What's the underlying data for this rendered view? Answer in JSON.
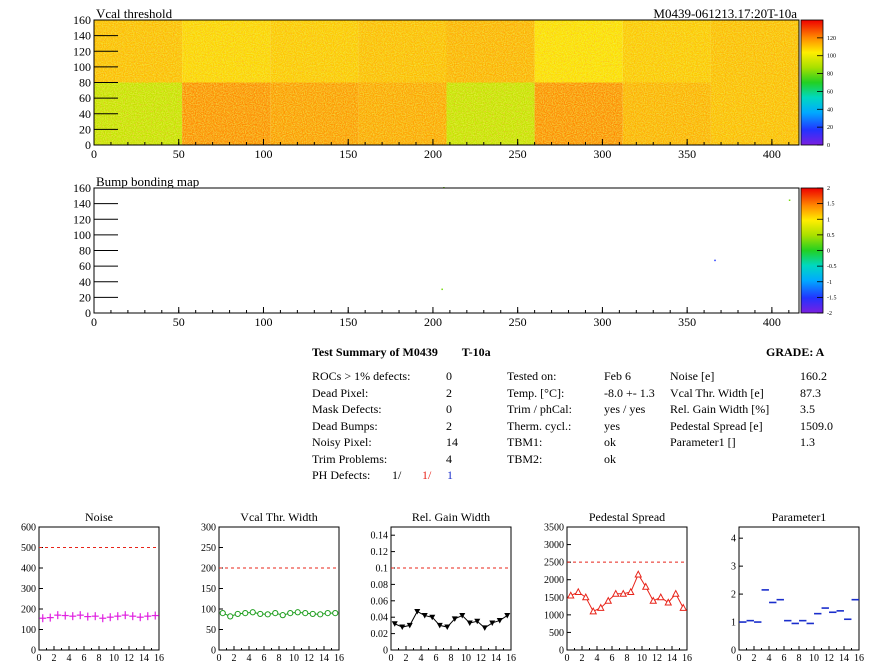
{
  "summary": {
    "title": "Test Summary of M0439",
    "temp_label": "T-10a",
    "grade": "GRADE:  A",
    "defects": [
      {
        "label": "ROCs > 1% defects:",
        "value": "0"
      },
      {
        "label": "Dead Pixel:",
        "value": "2"
      },
      {
        "label": "Mask Defects:",
        "value": "0"
      },
      {
        "label": "Dead Bumps:",
        "value": "2"
      },
      {
        "label": "Noisy Pixel:",
        "value": "14"
      },
      {
        "label": "Trim Problems:",
        "value": "4"
      }
    ],
    "ph_defects": {
      "label": "PH Defects:",
      "v1": "1/",
      "v2": "1/",
      "v3": "1",
      "color1": "#000000",
      "color2": "#e8241a",
      "color3": "#1a2ecc"
    },
    "tests": [
      {
        "label": "Tested on:",
        "value": "Feb 6"
      },
      {
        "label": "Temp. [°C]:",
        "value": "-8.0 +- 1.3"
      },
      {
        "label": "Trim / phCal:",
        "value": "yes / yes"
      },
      {
        "label": "Therm. cycl.:",
        "value": "yes"
      },
      {
        "label": "TBM1:",
        "value": "ok"
      },
      {
        "label": "TBM2:",
        "value": "ok"
      }
    ],
    "params": [
      {
        "label": "Noise [e]",
        "value": "160.2"
      },
      {
        "label": "Vcal Thr. Width [e]",
        "value": "87.3"
      },
      {
        "label": "Rel. Gain Width [%]",
        "value": "3.5"
      },
      {
        "label": "Pedestal Spread [e]",
        "value": "1509.0"
      },
      {
        "label": "Parameter1 []",
        "value": "1.3"
      }
    ]
  },
  "chart_data": [
    {
      "type": "heatmap",
      "title": "Vcal threshold",
      "corner_label": "M0439-061213.17:20T-10a",
      "xlim": [
        0,
        416
      ],
      "ylim": [
        0,
        160
      ],
      "xticks": [
        0,
        50,
        100,
        150,
        200,
        250,
        300,
        350,
        400
      ],
      "yticks": [
        0,
        20,
        40,
        60,
        80,
        100,
        120,
        140,
        160
      ],
      "zlim": [
        0,
        140
      ],
      "zticks": [
        0,
        20,
        40,
        60,
        80,
        100,
        120
      ],
      "roc_mean_thresholds": {
        "top_row": [
          112,
          108,
          110,
          112,
          114,
          106,
          110,
          112
        ],
        "bottom_row": [
          92,
          120,
          118,
          116,
          92,
          120,
          114,
          112
        ]
      }
    },
    {
      "type": "heatmap",
      "title": "Bump bonding map",
      "xlim": [
        0,
        416
      ],
      "ylim": [
        0,
        160
      ],
      "xticks": [
        0,
        50,
        100,
        150,
        200,
        250,
        300,
        350,
        400
      ],
      "yticks": [
        0,
        20,
        40,
        60,
        80,
        100,
        120,
        140,
        160
      ],
      "zlim": [
        -2,
        2
      ],
      "zticks": [
        "-2",
        "-1.5",
        "-1",
        "-0.5",
        "0",
        "0.5",
        "1",
        "1.5",
        "2"
      ],
      "points": [
        {
          "x": 206,
          "y": 160,
          "z": 0.3
        },
        {
          "x": 205,
          "y": 30,
          "z": 0.3
        },
        {
          "x": 366,
          "y": 67,
          "z": -1.5
        },
        {
          "x": 410,
          "y": 144,
          "z": 0.3
        }
      ]
    },
    {
      "type": "scatter",
      "title": "Noise",
      "marker": "cross",
      "color": "#e020e0",
      "xlim": [
        0,
        16
      ],
      "ylim": [
        0,
        600
      ],
      "xticks": [
        0,
        2,
        4,
        6,
        8,
        10,
        12,
        14,
        16
      ],
      "yticks": [
        0,
        100,
        200,
        300,
        400,
        500,
        600
      ],
      "ytick_labels": [
        "0",
        "100",
        "200",
        "300",
        "400",
        "500",
        "600"
      ],
      "limit": 500,
      "x": [
        0,
        1,
        2,
        3,
        4,
        5,
        6,
        7,
        8,
        9,
        10,
        11,
        12,
        13,
        14,
        15
      ],
      "y": [
        155,
        158,
        170,
        168,
        165,
        170,
        163,
        165,
        155,
        160,
        165,
        170,
        165,
        160,
        165,
        168
      ]
    },
    {
      "type": "line",
      "title": "Vcal Thr. Width",
      "marker": "open-circle",
      "color": "#1e9e1e",
      "xlim": [
        0,
        16
      ],
      "ylim": [
        0,
        300
      ],
      "xticks": [
        0,
        2,
        4,
        6,
        8,
        10,
        12,
        14,
        16
      ],
      "yticks": [
        0,
        50,
        100,
        150,
        200,
        250,
        300
      ],
      "ytick_labels": [
        "0",
        "50",
        "100",
        "150",
        "200",
        "250",
        "300"
      ],
      "limit": 200,
      "x": [
        0,
        1,
        2,
        3,
        4,
        5,
        6,
        7,
        8,
        9,
        10,
        11,
        12,
        13,
        14,
        15
      ],
      "y": [
        90,
        82,
        88,
        90,
        92,
        88,
        87,
        90,
        85,
        90,
        92,
        90,
        88,
        87,
        90,
        90
      ]
    },
    {
      "type": "line",
      "title": "Rel. Gain Width",
      "marker": "filled-triangle",
      "color": "#000000",
      "xlim": [
        0,
        16
      ],
      "ylim": [
        0,
        0.15
      ],
      "xticks": [
        0,
        2,
        4,
        6,
        8,
        10,
        12,
        14,
        16
      ],
      "yticks": [
        0,
        0.02,
        0.04,
        0.06,
        0.08,
        0.1,
        0.12,
        0.14
      ],
      "ytick_labels": [
        "0",
        "0.02",
        "0.04",
        "0.06",
        "0.08",
        "0.1",
        "0.12",
        "0.14"
      ],
      "limit": 0.1,
      "x": [
        0,
        1,
        2,
        3,
        4,
        5,
        6,
        7,
        8,
        9,
        10,
        11,
        12,
        13,
        14,
        15
      ],
      "y": [
        0.032,
        0.028,
        0.03,
        0.047,
        0.042,
        0.04,
        0.03,
        0.028,
        0.038,
        0.042,
        0.033,
        0.035,
        0.027,
        0.033,
        0.036,
        0.042
      ]
    },
    {
      "type": "line",
      "title": "Pedestal Spread",
      "marker": "open-triangle",
      "color": "#e8241a",
      "xlim": [
        0,
        16
      ],
      "ylim": [
        0,
        3500
      ],
      "xticks": [
        0,
        2,
        4,
        6,
        8,
        10,
        12,
        14,
        16
      ],
      "yticks": [
        0,
        500,
        1000,
        1500,
        2000,
        2500,
        3000,
        3500
      ],
      "ytick_labels": [
        "0",
        "500",
        "1000",
        "1500",
        "2000",
        "2500",
        "3000",
        "3500"
      ],
      "limit": 2500,
      "x": [
        0,
        1,
        2,
        3,
        4,
        5,
        6,
        7,
        8,
        9,
        10,
        11,
        12,
        13,
        14,
        15
      ],
      "y": [
        1550,
        1650,
        1500,
        1100,
        1200,
        1400,
        1600,
        1600,
        1650,
        2150,
        1800,
        1400,
        1500,
        1350,
        1600,
        1200
      ]
    },
    {
      "type": "scatter",
      "title": "Parameter1",
      "marker": "hbar",
      "color": "#1a2ecc",
      "xlim": [
        0,
        16
      ],
      "ylim": [
        0,
        4.4
      ],
      "xticks": [
        0,
        2,
        4,
        6,
        8,
        10,
        12,
        14,
        16
      ],
      "yticks": [
        0,
        1,
        2,
        3,
        4
      ],
      "ytick_labels": [
        "0",
        "1",
        "2",
        "3",
        "4"
      ],
      "x": [
        0,
        1,
        2,
        3,
        4,
        5,
        6,
        7,
        8,
        9,
        10,
        11,
        12,
        13,
        14,
        15
      ],
      "y": [
        1.0,
        1.05,
        1.0,
        2.15,
        1.7,
        1.8,
        1.05,
        0.95,
        1.05,
        0.95,
        1.3,
        1.5,
        1.35,
        1.4,
        1.1,
        1.8
      ]
    }
  ]
}
